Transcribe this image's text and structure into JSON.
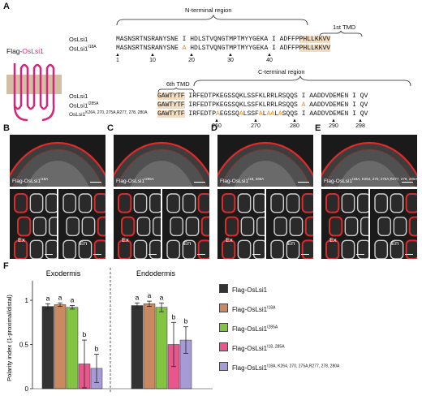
{
  "panels": {
    "A": "A",
    "B": "B",
    "C": "C",
    "D": "D",
    "E": "E",
    "F": "F"
  },
  "panel_a": {
    "construct_label_prefix": "Flag-",
    "construct_label_suffix": "OsLsi1",
    "n_region": "N-terminal region",
    "c_region": "C-terminal region",
    "tmd1": "1st TMD",
    "tmd6": "6th TMD",
    "n_rows": [
      {
        "name": "OsLsi1",
        "sup": "",
        "seq": "MASNSRTNSRANYSNE I HDLSTVQNGTMPTMYYGEKA I ADFFP",
        "tmd": "PHLLKKVV"
      },
      {
        "name": "OsLsi1",
        "sup": "I18A",
        "seq_pre": "MASNSRTNSRANYSNE ",
        "mut": "A",
        "seq_post": " HDLSTVQNGTMPTMYYGEKA I ADFFP",
        "tmd": "PHLLKKVV"
      }
    ],
    "n_ticks": [
      "1",
      "10",
      "20",
      "30",
      "40"
    ],
    "c_rows": [
      {
        "name": "OsLsi1",
        "sup": "",
        "tmd": "GAWTYTF",
        "seq": " IRFEDTPKEGSSQKLSSFKLRRLRSQQS I AADDVDEMEN I QV"
      },
      {
        "name": "OsLsi1",
        "sup": "I285A",
        "tmd": "GAWTYTF",
        "seq_pre": " IRFEDTPKEGSSQKLSSFKLRRLRSQQS ",
        "mut": "A",
        "seq_post": " AADDVDEMEN I QV"
      },
      {
        "name": "OsLsi1",
        "sup": "K264, 270, 275A,R277, 278, 280A",
        "tmd": "GAWTYTF",
        "parts": [
          " IRFEDTP",
          "A",
          "EGSS",
          "Q",
          "A",
          "LSSF",
          "A",
          "L",
          "A",
          "A",
          "L",
          "A",
          "SQQS I AADDVDEMEN I QV"
        ]
      }
    ],
    "c_ticks": [
      "260",
      "270",
      "280",
      "290",
      "298"
    ]
  },
  "micro_panels": [
    {
      "letter": "B",
      "label": "Flag-OsLsi1",
      "sup": "I18A"
    },
    {
      "letter": "C",
      "label": "Flag-OsLsi1",
      "sup": "I285A"
    },
    {
      "letter": "D",
      "label": "Flag-OsLsi1",
      "sup": "I18, 285A"
    },
    {
      "letter": "E",
      "label": "Flag-OsLsi1",
      "sup": "I18A, K264, 270, 275A,R277, 278, 280A"
    }
  ],
  "cell_labels": {
    "ex": "Ex",
    "en": "En"
  },
  "chart_data": {
    "type": "bar",
    "groups": [
      "Exodermis",
      "Endodermis"
    ],
    "ylabel": "Polarity index (1-proximal/distal)",
    "ylim": [
      0,
      1
    ],
    "yticks": [
      "0",
      "0.5",
      "1"
    ],
    "series": [
      {
        "name": "Flag-OsLsi1",
        "sup": "",
        "color": "#333333",
        "values": [
          0.93,
          0.94
        ],
        "errors": [
          0.03,
          0.03
        ],
        "letters": [
          "a",
          "a"
        ]
      },
      {
        "name": "Flag-OsLsi1",
        "sup": "I18A",
        "color": "#c98a61",
        "values": [
          0.95,
          0.96
        ],
        "errors": [
          0.02,
          0.03
        ],
        "letters": [
          "a",
          "a"
        ]
      },
      {
        "name": "Flag-OsLsi1",
        "sup": "I285A",
        "color": "#82c341",
        "values": [
          0.92,
          0.92
        ],
        "errors": [
          0.02,
          0.05
        ],
        "letters": [
          "a",
          "a"
        ]
      },
      {
        "name": "Flag-OsLsi1",
        "sup": "I18, 285A",
        "color": "#e8578c",
        "values": [
          0.28,
          0.5
        ],
        "errors": [
          0.27,
          0.25
        ],
        "letters": [
          "b",
          "b"
        ]
      },
      {
        "name": "Flag-OsLsi1",
        "sup": "I18A, K264, 270, 275A,R277, 278, 280A",
        "color": "#a79bd6",
        "values": [
          0.23,
          0.55
        ],
        "errors": [
          0.16,
          0.15
        ],
        "letters": [
          "b",
          "b"
        ]
      }
    ]
  }
}
